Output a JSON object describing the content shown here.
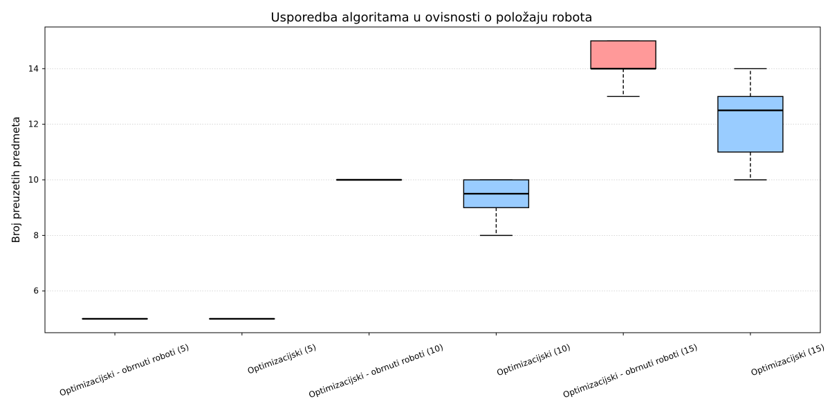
{
  "chart_data": {
    "type": "box",
    "title": "Usporedba algoritama u ovisnosti o položaju robota",
    "xlabel": "",
    "ylabel": "Broj preuzetih predmeta",
    "ylim": [
      4.5,
      15.5
    ],
    "yticks": [
      "6",
      "8",
      "10",
      "12",
      "14"
    ],
    "grid": "y-dotted",
    "categories": [
      "Optimizacijski - obrnuti roboti (5)",
      "Optimizacijski (5)",
      "Optimizacijski - obrnuti roboti (10)",
      "Optimizacijski (10)",
      "Optimizacijski - obrnuti roboti (15)",
      "Optimizacijski (15)"
    ],
    "boxes": [
      {
        "whislo": 5,
        "q1": 5,
        "median": 5,
        "q3": 5,
        "whishi": 5,
        "color": "#9999ff"
      },
      {
        "whislo": 5,
        "q1": 5,
        "median": 5,
        "q3": 5,
        "whishi": 5,
        "color": "#99ccff"
      },
      {
        "whislo": 10,
        "q1": 10,
        "median": 10,
        "q3": 10,
        "whishi": 10,
        "color": "#99ccff"
      },
      {
        "whislo": 8,
        "q1": 9,
        "median": 9.5,
        "q3": 10,
        "whishi": 10,
        "color": "#99ccff"
      },
      {
        "whislo": 13,
        "q1": 14,
        "median": 14,
        "q3": 15,
        "whishi": 15,
        "color": "#ff9999"
      },
      {
        "whislo": 10,
        "q1": 11,
        "median": 12.5,
        "q3": 13,
        "whishi": 14,
        "color": "#99ccff"
      }
    ]
  }
}
